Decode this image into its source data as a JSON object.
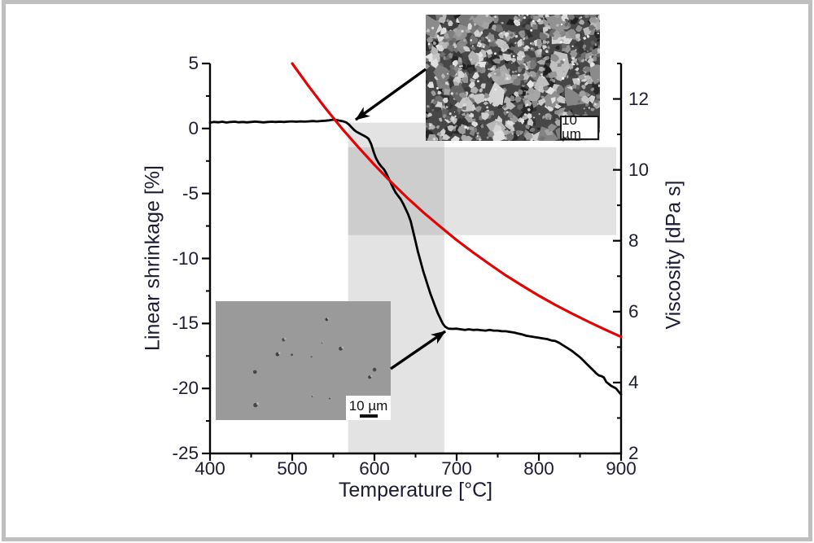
{
  "figure": {
    "frame_color": "#bfbfbf",
    "background": "#ffffff"
  },
  "chart_data": {
    "type": "line",
    "title": "",
    "xlabel": "Temperature [°C]",
    "ylabel_left": "Linear shrinkage [%]",
    "ylabel_right": "Viscosity [dPa s]",
    "x_range": [
      400,
      900
    ],
    "x_major_ticks": [
      400,
      500,
      600,
      700,
      800,
      900
    ],
    "x_tick_labels": [
      "400",
      "500",
      "600",
      "700",
      "800",
      "900"
    ],
    "x_minor_ticks": [
      450,
      550,
      650,
      750,
      850
    ],
    "yleft_range": [
      -25,
      5
    ],
    "yleft_major_ticks": [
      5,
      0,
      -5,
      -10,
      -15,
      -20,
      -25
    ],
    "yleft_tick_labels": [
      "5",
      "0",
      "-5",
      "-10",
      "-15",
      "-20",
      "-25"
    ],
    "yleft_minor_ticks": [
      2.5,
      -2.5,
      -7.5,
      -12.5,
      -17.5,
      -22.5
    ],
    "yright_range": [
      2,
      13
    ],
    "yright_major_ticks": [
      12,
      10,
      8,
      6,
      4,
      2
    ],
    "yright_tick_labels": [
      "12",
      "10",
      "8",
      "6",
      "4",
      "2"
    ],
    "yright_minor_ticks": [
      13,
      11,
      9,
      7,
      5,
      3
    ],
    "grid": false,
    "legend": "none",
    "series": [
      {
        "name": "Linear shrinkage",
        "axis": "left",
        "color": "#000000",
        "width": 2.8,
        "points": [
          [
            400,
            0.45
          ],
          [
            405,
            0.5
          ],
          [
            410,
            0.48
          ],
          [
            415,
            0.52
          ],
          [
            420,
            0.46
          ],
          [
            425,
            0.5
          ],
          [
            430,
            0.52
          ],
          [
            435,
            0.48
          ],
          [
            440,
            0.5
          ],
          [
            445,
            0.47
          ],
          [
            450,
            0.5
          ],
          [
            455,
            0.53
          ],
          [
            460,
            0.5
          ],
          [
            465,
            0.47
          ],
          [
            470,
            0.5
          ],
          [
            475,
            0.52
          ],
          [
            480,
            0.5
          ],
          [
            485,
            0.52
          ],
          [
            490,
            0.5
          ],
          [
            495,
            0.53
          ],
          [
            500,
            0.55
          ],
          [
            505,
            0.52
          ],
          [
            510,
            0.55
          ],
          [
            515,
            0.53
          ],
          [
            520,
            0.55
          ],
          [
            525,
            0.57
          ],
          [
            530,
            0.55
          ],
          [
            535,
            0.58
          ],
          [
            540,
            0.6
          ],
          [
            545,
            0.63
          ],
          [
            550,
            0.68
          ],
          [
            554,
            0.66
          ],
          [
            558,
            0.6
          ],
          [
            562,
            0.55
          ],
          [
            566,
            0.45
          ],
          [
            569,
            0.3
          ],
          [
            572,
            0.1
          ],
          [
            575,
            -0.1
          ],
          [
            578,
            -0.25
          ],
          [
            581,
            -0.35
          ],
          [
            584,
            -0.45
          ],
          [
            587,
            -0.55
          ],
          [
            590,
            -0.65
          ],
          [
            593,
            -0.8
          ],
          [
            596,
            -1.2
          ],
          [
            599,
            -1.8
          ],
          [
            602,
            -2.3
          ],
          [
            605,
            -2.65
          ],
          [
            608,
            -2.9
          ],
          [
            611,
            -3.1
          ],
          [
            614,
            -3.4
          ],
          [
            617,
            -3.8
          ],
          [
            620,
            -4.2
          ],
          [
            623,
            -4.6
          ],
          [
            626,
            -4.95
          ],
          [
            629,
            -5.2
          ],
          [
            632,
            -5.45
          ],
          [
            635,
            -5.8
          ],
          [
            638,
            -6.2
          ],
          [
            641,
            -6.6
          ],
          [
            644,
            -7.1
          ],
          [
            647,
            -7.9
          ],
          [
            650,
            -8.7
          ],
          [
            653,
            -9.5
          ],
          [
            656,
            -10.2
          ],
          [
            659,
            -10.9
          ],
          [
            662,
            -11.5
          ],
          [
            665,
            -12.1
          ],
          [
            668,
            -12.7
          ],
          [
            671,
            -13.2
          ],
          [
            674,
            -13.7
          ],
          [
            677,
            -14.2
          ],
          [
            680,
            -14.6
          ],
          [
            683,
            -15.0
          ],
          [
            686,
            -15.25
          ],
          [
            690,
            -15.4
          ],
          [
            695,
            -15.42
          ],
          [
            700,
            -15.4
          ],
          [
            705,
            -15.45
          ],
          [
            710,
            -15.5
          ],
          [
            715,
            -15.45
          ],
          [
            720,
            -15.5
          ],
          [
            725,
            -15.48
          ],
          [
            730,
            -15.52
          ],
          [
            735,
            -15.55
          ],
          [
            740,
            -15.5
          ],
          [
            745,
            -15.55
          ],
          [
            750,
            -15.55
          ],
          [
            755,
            -15.6
          ],
          [
            760,
            -15.6
          ],
          [
            765,
            -15.65
          ],
          [
            770,
            -15.7
          ],
          [
            775,
            -15.78
          ],
          [
            780,
            -15.85
          ],
          [
            785,
            -15.95
          ],
          [
            790,
            -16.0
          ],
          [
            795,
            -16.05
          ],
          [
            800,
            -16.1
          ],
          [
            805,
            -16.15
          ],
          [
            810,
            -16.2
          ],
          [
            815,
            -16.3
          ],
          [
            820,
            -16.35
          ],
          [
            825,
            -16.5
          ],
          [
            830,
            -16.7
          ],
          [
            835,
            -16.9
          ],
          [
            840,
            -17.1
          ],
          [
            845,
            -17.35
          ],
          [
            850,
            -17.6
          ],
          [
            855,
            -17.9
          ],
          [
            858,
            -18.1
          ],
          [
            862,
            -18.35
          ],
          [
            866,
            -18.6
          ],
          [
            870,
            -18.85
          ],
          [
            873,
            -19.0
          ],
          [
            876,
            -19.05
          ],
          [
            879,
            -19.15
          ],
          [
            882,
            -19.5
          ],
          [
            885,
            -19.65
          ],
          [
            888,
            -19.8
          ],
          [
            891,
            -19.9
          ],
          [
            894,
            -20.0
          ],
          [
            897,
            -20.25
          ],
          [
            900,
            -20.45
          ]
        ]
      },
      {
        "name": "Viscosity",
        "axis": "right",
        "color": "#e00505",
        "width": 3.2,
        "points": [
          [
            500,
            13.0
          ],
          [
            520,
            12.36
          ],
          [
            540,
            11.75
          ],
          [
            560,
            11.18
          ],
          [
            580,
            10.65
          ],
          [
            600,
            10.14
          ],
          [
            620,
            9.66
          ],
          [
            640,
            9.21
          ],
          [
            660,
            8.79
          ],
          [
            680,
            8.4
          ],
          [
            700,
            8.02
          ],
          [
            720,
            7.67
          ],
          [
            740,
            7.34
          ],
          [
            760,
            7.02
          ],
          [
            780,
            6.73
          ],
          [
            800,
            6.45
          ],
          [
            820,
            6.19
          ],
          [
            840,
            5.95
          ],
          [
            860,
            5.72
          ],
          [
            880,
            5.5
          ],
          [
            900,
            5.29
          ]
        ]
      }
    ],
    "highlight_bands": [
      {
        "name": "temperature-interval-band",
        "orientation": "vertical",
        "temp_range": [
          568,
          685
        ],
        "shrinkage_range": [
          0.45,
          -25
        ],
        "color": "rgba(128,128,128,0.22)"
      },
      {
        "name": "shrinkage-interval-band",
        "orientation": "horizontal",
        "temp_range": [
          568,
          894
        ],
        "shrinkage_range": [
          -1.44,
          -8.2
        ],
        "color": "rgba(128,128,128,0.22)"
      }
    ]
  },
  "insets": [
    {
      "name": "powder-micrograph",
      "scale_label": "10 µm",
      "description": "SEM image of loose angular glass powder particles"
    },
    {
      "name": "dense-micrograph",
      "scale_label": "10 µm",
      "description": "SEM image of densified smooth glass surface with few pores"
    }
  ],
  "annotations": {
    "arrows": [
      {
        "name": "powder-arrow",
        "from": [
          523,
          85
        ],
        "to": [
          437,
          147
        ]
      },
      {
        "name": "dense-arrow",
        "from": [
          480,
          453
        ],
        "to": [
          547,
          407
        ]
      }
    ]
  }
}
